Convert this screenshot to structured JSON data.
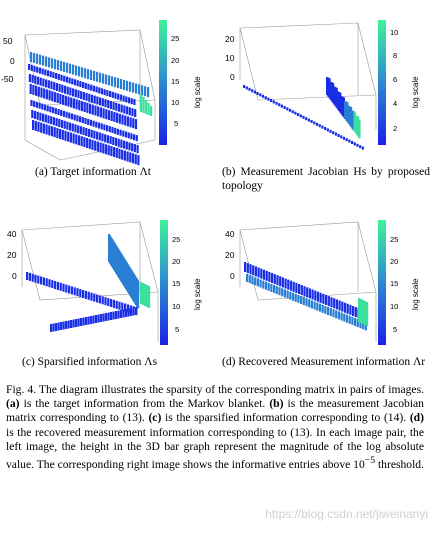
{
  "panels": {
    "a": {
      "caption": "(a) Target information Λt",
      "z_ticks": [
        "50",
        "0",
        "-50"
      ],
      "cbar_ticks": [
        "25",
        "20",
        "15",
        "10",
        "5"
      ],
      "cbar_label": "log scale"
    },
    "b": {
      "caption": "(b) Measurement Jacobian Hs by proposed topology",
      "z_ticks": [
        "20",
        "10",
        "0"
      ],
      "cbar_ticks": [
        "10",
        "8",
        "6",
        "4",
        "2"
      ],
      "cbar_label": "log scale"
    },
    "c": {
      "caption": "(c) Sparsified information Λs",
      "z_ticks": [
        "40",
        "20",
        "0"
      ],
      "cbar_ticks": [
        "25",
        "20",
        "15",
        "10",
        "5"
      ],
      "cbar_label": "log scale"
    },
    "d": {
      "caption": "(d) Recovered Measurement information Λr",
      "z_ticks": [
        "40",
        "20",
        "0"
      ],
      "cbar_ticks": [
        "25",
        "20",
        "15",
        "10",
        "5"
      ],
      "cbar_label": "log scale"
    }
  },
  "figure_caption": {
    "label": "Fig. 4.",
    "p1": "The diagram illustrates the sparsity of the corresponding matrix in pairs of images.",
    "a_tag": "(a)",
    "a_text": "is the target information from the Markov blanket.",
    "b_tag": "(b)",
    "b_text": "is the measurement Jacobian matrix corresponding to (13).",
    "c_tag": "(c)",
    "c_text": "is the sparsified information corresponding to (14).",
    "d_tag": "(d)",
    "d_text": "is the recovered measurement information corresponding to (13). In each image pair, the left image, the height in the 3D bar graph represent the magnitude of the log absolute value. The corresponding right image shows the informative entries above 10",
    "exp": "−5",
    "tail": " threshold."
  },
  "watermark": "https://blog.csdn.net/jiweinanyi",
  "colors": {
    "bar_dark": "#1a2ee8",
    "bar_mid": "#2a7fd4",
    "bar_light": "#3be09a",
    "axis": "#444444"
  }
}
